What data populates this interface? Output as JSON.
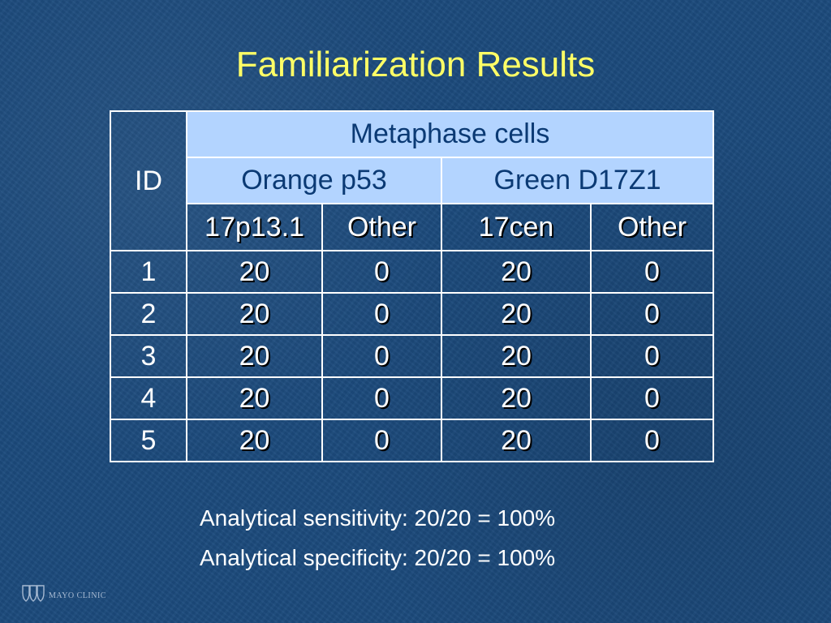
{
  "slide": {
    "title": "Familiarization Results"
  },
  "table": {
    "id_header": "ID",
    "group_header": "Metaphase cells",
    "probe_headers": [
      "Orange p53",
      "Green D17Z1"
    ],
    "sub_headers": [
      "17p13.1",
      "Other",
      "17cen",
      "Other"
    ],
    "rows": [
      {
        "id": "1",
        "values": [
          "20",
          "0",
          "20",
          "0"
        ]
      },
      {
        "id": "2",
        "values": [
          "20",
          "0",
          "20",
          "0"
        ]
      },
      {
        "id": "3",
        "values": [
          "20",
          "0",
          "20",
          "0"
        ]
      },
      {
        "id": "4",
        "values": [
          "20",
          "0",
          "20",
          "0"
        ]
      },
      {
        "id": "5",
        "values": [
          "20",
          "0",
          "20",
          "0"
        ]
      }
    ]
  },
  "notes": [
    "Analytical sensitivity: 20/20 = 100%",
    "Analytical specificity: 20/20 = 100%"
  ],
  "logo": {
    "text": "MAYO CLINIC",
    "icon": "mayo-shields-icon"
  },
  "colors": {
    "background": "#1c4a7c",
    "title": "#ffff66",
    "header_fill": "#b3d4ff",
    "header_text": "#0b3a74",
    "body_text": "#ffffff"
  }
}
